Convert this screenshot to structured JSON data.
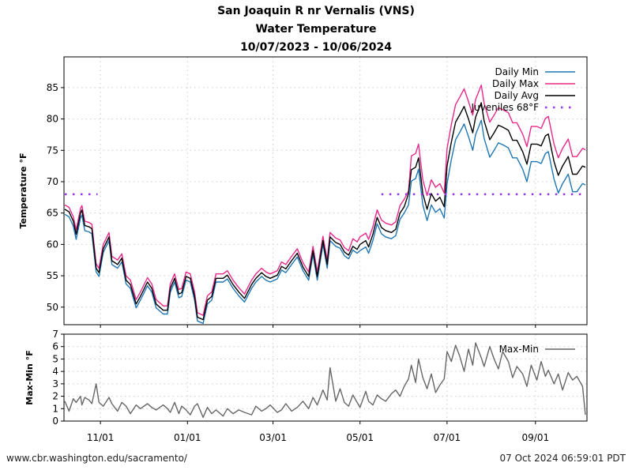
{
  "header": {
    "title_line1": "San Joaquin R nr Vernalis (VNS)",
    "title_line2": "Water Temperature",
    "title_line3": "10/07/2023 - 10/06/2024"
  },
  "footer": {
    "source_url": "www.cbr.washington.edu/sacramento/",
    "generated": "07 Oct 2024 06:59:01 PDT"
  },
  "chart_data": [
    {
      "type": "line",
      "title": "Water Temperature",
      "xlabel": "",
      "ylabel": "Temperature °F",
      "x_units": "days since 10/07/2023",
      "xlim": [
        0,
        365
      ],
      "ylim": [
        47.2,
        89.9
      ],
      "yticks": [
        50,
        55,
        60,
        65,
        70,
        75,
        80,
        85
      ],
      "xticks": [
        {
          "day": 25,
          "label": "11/01"
        },
        {
          "day": 86,
          "label": "01/01"
        },
        {
          "day": 146,
          "label": "03/01"
        },
        {
          "day": 207,
          "label": "05/01"
        },
        {
          "day": 268,
          "label": "07/01"
        },
        {
          "day": 330,
          "label": "09/01"
        }
      ],
      "grid": true,
      "legend_position": "top-right",
      "x": [
        0,
        3,
        6,
        8,
        11,
        12,
        14,
        17,
        19,
        22,
        24,
        27,
        31,
        33,
        37,
        40,
        43,
        46,
        50,
        53,
        58,
        61,
        64,
        69,
        72,
        74,
        77,
        80,
        82,
        85,
        88,
        91,
        93,
        97,
        100,
        103,
        106,
        111,
        114,
        118,
        122,
        126,
        131,
        134,
        138,
        141,
        144,
        149,
        152,
        155,
        159,
        163,
        167,
        171,
        174,
        177,
        181,
        184,
        186,
        190,
        193,
        196,
        199,
        202,
        205,
        207,
        211,
        213,
        216,
        219,
        222,
        225,
        229,
        232,
        235,
        238,
        241,
        243,
        246,
        248,
        251,
        254,
        257,
        260,
        263,
        266,
        268,
        271,
        274,
        277,
        280,
        283,
        286,
        288,
        292,
        294,
        298,
        301,
        304,
        307,
        311,
        314,
        317,
        321,
        324,
        327,
        331,
        334,
        337,
        339,
        343,
        346,
        349,
        353,
        356,
        359,
        363,
        365
      ],
      "series": [
        {
          "name": "Daily Min",
          "color": "#1f77b4",
          "values": [
            64.8,
            64.4,
            62.9,
            60.8,
            64.2,
            64.7,
            62.2,
            62.0,
            61.7,
            55.6,
            54.9,
            58.7,
            60.6,
            56.8,
            56.2,
            57.2,
            53.7,
            53.0,
            49.9,
            51.1,
            53.4,
            52.4,
            49.9,
            48.9,
            48.9,
            52.4,
            54.0,
            51.5,
            51.7,
            54.3,
            54.0,
            51.1,
            47.8,
            47.4,
            50.5,
            51.1,
            54.0,
            54.0,
            54.5,
            53.0,
            51.8,
            50.8,
            53.0,
            54.0,
            54.9,
            54.3,
            54.0,
            54.5,
            55.9,
            55.5,
            56.8,
            58.0,
            55.8,
            54.3,
            58.4,
            54.3,
            60.0,
            56.2,
            60.6,
            59.7,
            59.4,
            58.2,
            57.7,
            59.1,
            58.6,
            59.0,
            59.6,
            58.6,
            60.6,
            63.3,
            61.7,
            61.2,
            60.9,
            61.4,
            64.0,
            65.0,
            66.3,
            70.1,
            70.5,
            72.0,
            66.3,
            63.8,
            66.3,
            65.1,
            65.7,
            64.2,
            69.7,
            73.5,
            76.7,
            77.9,
            79.2,
            77.2,
            75.0,
            77.5,
            79.8,
            76.9,
            73.9,
            75.0,
            76.2,
            75.9,
            75.4,
            73.8,
            73.8,
            72.0,
            70.0,
            73.2,
            73.2,
            72.9,
            74.5,
            74.8,
            70.4,
            68.2,
            69.7,
            71.2,
            68.4,
            68.4,
            69.7,
            69.5
          ]
        },
        {
          "name": "Daily Max",
          "color": "#e7298a",
          "values": [
            66.3,
            65.9,
            64.4,
            62.3,
            65.7,
            66.2,
            63.7,
            63.5,
            63.2,
            56.9,
            56.2,
            60.0,
            61.9,
            58.1,
            57.5,
            58.5,
            55.0,
            54.3,
            51.2,
            52.4,
            54.7,
            53.7,
            51.2,
            50.2,
            50.2,
            53.7,
            55.3,
            52.8,
            53.0,
            55.6,
            55.3,
            52.4,
            49.1,
            48.7,
            51.8,
            52.4,
            55.3,
            55.3,
            55.8,
            54.3,
            53.1,
            52.1,
            54.3,
            55.3,
            56.2,
            55.6,
            55.3,
            55.8,
            57.2,
            56.8,
            58.1,
            59.3,
            57.1,
            55.6,
            59.7,
            55.6,
            61.3,
            57.5,
            61.9,
            61.0,
            60.7,
            59.5,
            59.0,
            60.9,
            60.4,
            61.2,
            61.8,
            60.8,
            62.8,
            65.5,
            63.9,
            63.4,
            63.1,
            63.6,
            66.2,
            67.2,
            68.5,
            74.1,
            74.5,
            76.0,
            70.3,
            67.8,
            70.3,
            69.1,
            69.7,
            68.2,
            75.3,
            79.1,
            82.3,
            83.5,
            84.8,
            82.8,
            80.6,
            83.1,
            85.4,
            82.5,
            79.5,
            80.6,
            81.8,
            81.5,
            81.0,
            79.4,
            79.4,
            77.6,
            75.6,
            78.8,
            78.8,
            78.5,
            80.1,
            80.4,
            76.0,
            73.8,
            75.3,
            76.8,
            74.0,
            74.0,
            75.3,
            75.1
          ]
        },
        {
          "name": "Daily Avg",
          "color": "#000000",
          "values": [
            65.6,
            65.2,
            63.7,
            61.6,
            65.0,
            65.5,
            63.0,
            62.8,
            62.5,
            56.2,
            55.5,
            59.3,
            61.2,
            57.4,
            56.8,
            57.8,
            54.3,
            53.6,
            50.5,
            51.7,
            54.0,
            53.0,
            50.5,
            49.5,
            49.5,
            53.0,
            54.6,
            52.1,
            52.3,
            54.9,
            54.6,
            51.7,
            48.4,
            48.0,
            51.1,
            51.7,
            54.6,
            54.6,
            55.1,
            53.6,
            52.4,
            51.4,
            53.6,
            54.6,
            55.5,
            54.9,
            54.6,
            55.1,
            56.5,
            56.1,
            57.4,
            58.6,
            56.4,
            54.9,
            59.0,
            54.9,
            60.6,
            56.8,
            61.2,
            60.3,
            60.0,
            58.8,
            58.3,
            59.7,
            59.2,
            60.0,
            60.6,
            59.6,
            61.6,
            64.3,
            62.7,
            62.2,
            61.9,
            62.4,
            65.0,
            66.0,
            68.1,
            71.9,
            72.3,
            73.8,
            68.1,
            65.6,
            68.1,
            66.9,
            67.5,
            66.0,
            72.5,
            76.3,
            79.5,
            80.7,
            82.0,
            80.0,
            77.8,
            80.3,
            82.6,
            79.7,
            76.7,
            77.8,
            79.0,
            78.7,
            78.2,
            76.6,
            76.6,
            74.8,
            72.8,
            76.0,
            76.0,
            75.7,
            77.3,
            77.6,
            73.2,
            71.0,
            72.5,
            74.0,
            71.2,
            71.2,
            72.5,
            72.3
          ]
        },
        {
          "name": "Juveniles 68°F",
          "color": "#9933ee",
          "style": "dotted",
          "value": 68,
          "ranges": [
            [
              0,
              23
            ],
            [
              222,
              365
            ]
          ]
        }
      ]
    },
    {
      "type": "line",
      "xlabel": "",
      "ylabel": "Max-Min °F",
      "x_units": "days since 10/07/2023",
      "xlim": [
        0,
        365
      ],
      "ylim": [
        0,
        7
      ],
      "yticks": [
        0,
        1,
        2,
        3,
        4,
        5,
        6,
        7
      ],
      "grid": true,
      "legend_position": "top-right",
      "x": [
        0,
        3,
        6,
        8,
        11,
        12,
        14,
        17,
        19,
        22,
        24,
        27,
        31,
        33,
        37,
        40,
        43,
        46,
        50,
        53,
        58,
        61,
        64,
        69,
        72,
        74,
        77,
        80,
        82,
        85,
        88,
        91,
        93,
        97,
        100,
        103,
        106,
        111,
        114,
        118,
        122,
        126,
        131,
        134,
        138,
        141,
        144,
        149,
        152,
        155,
        159,
        163,
        167,
        171,
        174,
        177,
        181,
        184,
        186,
        190,
        193,
        196,
        199,
        202,
        205,
        207,
        211,
        213,
        216,
        219,
        222,
        225,
        229,
        232,
        235,
        238,
        241,
        243,
        246,
        248,
        251,
        254,
        257,
        260,
        263,
        266,
        268,
        271,
        274,
        277,
        280,
        283,
        286,
        288,
        292,
        294,
        298,
        301,
        304,
        307,
        311,
        314,
        317,
        321,
        324,
        327,
        331,
        334,
        337,
        339,
        343,
        346,
        349,
        353,
        356,
        359,
        363,
        365
      ],
      "series": [
        {
          "name": "Max-Min",
          "color": "#666666",
          "values": [
            1.6,
            0.8,
            1.8,
            1.5,
            2.0,
            1.3,
            1.9,
            1.7,
            1.4,
            3.0,
            1.5,
            1.2,
            1.9,
            1.4,
            0.8,
            1.5,
            1.2,
            0.6,
            1.3,
            1.0,
            1.4,
            1.1,
            0.9,
            1.3,
            1.0,
            0.7,
            1.5,
            0.6,
            1.2,
            0.9,
            0.5,
            1.2,
            1.4,
            0.3,
            1.1,
            0.6,
            0.9,
            0.4,
            1.0,
            0.6,
            0.9,
            0.7,
            0.5,
            1.2,
            0.8,
            1.0,
            1.3,
            0.7,
            0.9,
            1.4,
            0.8,
            1.1,
            1.6,
            1.0,
            1.9,
            1.3,
            2.5,
            1.7,
            4.3,
            1.6,
            2.6,
            1.5,
            1.2,
            2.1,
            1.5,
            1.1,
            2.4,
            1.6,
            1.3,
            2.1,
            1.8,
            1.6,
            2.2,
            2.5,
            2.0,
            2.8,
            3.4,
            4.5,
            3.1,
            5.0,
            3.5,
            2.6,
            3.8,
            2.3,
            2.9,
            3.4,
            5.6,
            4.8,
            6.1,
            5.2,
            4.0,
            5.8,
            4.5,
            6.3,
            5.1,
            4.4,
            6.0,
            5.0,
            4.2,
            5.6,
            4.8,
            3.5,
            4.4,
            3.8,
            2.8,
            4.5,
            3.3,
            4.8,
            3.6,
            4.1,
            3.0,
            3.8,
            2.5,
            3.9,
            3.3,
            3.6,
            2.8,
            0.5
          ]
        }
      ]
    }
  ]
}
